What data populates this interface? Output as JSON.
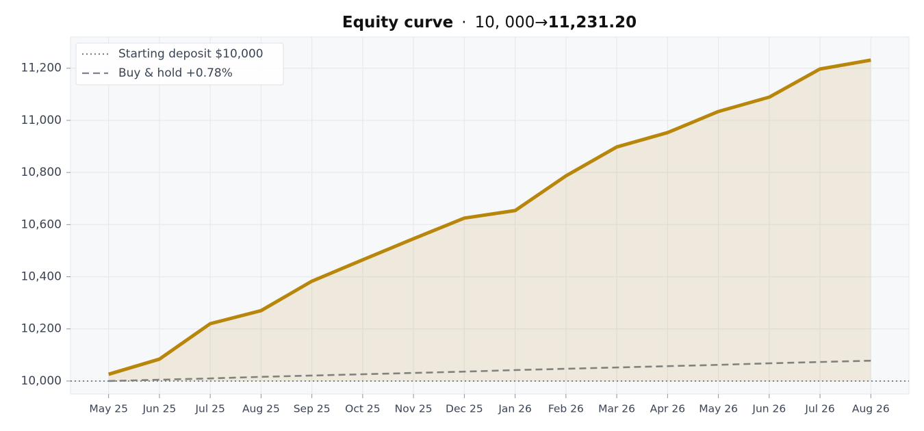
{
  "chart_data": {
    "type": "line",
    "title_parts": [
      "Equity curve",
      "·",
      "10, 000→",
      "11,231.20"
    ],
    "categories": [
      "May 25",
      "Jun 25",
      "Jul 25",
      "Aug 25",
      "Sep 25",
      "Oct 25",
      "Nov 25",
      "Dec 25",
      "Jan 26",
      "Feb 26",
      "Mar 26",
      "Apr 26",
      "May 26",
      "Jun 26",
      "Jul 26",
      "Aug 26"
    ],
    "series": [
      {
        "color": "#b8860b",
        "style": "solid",
        "fill": true,
        "values": [
          10026,
          10084,
          10220,
          10270,
          10383,
          10465,
          10546,
          10625,
          10654,
          10787,
          10898,
          10953,
          11034,
          11089,
          11197,
          11231.2
        ]
      },
      {
        "name": "Buy & hold +0.78%",
        "color": "#7a8290",
        "style": "dashed",
        "fill": false,
        "values": [
          10000,
          10005,
          10010,
          10016,
          10021,
          10026,
          10031,
          10036,
          10042,
          10047,
          10052,
          10057,
          10062,
          10068,
          10073,
          10078
        ]
      }
    ],
    "reference_line": {
      "name": "Starting deposit $10,000",
      "value": 10000,
      "color": "#7a8290",
      "style": "dotted"
    },
    "ylim": [
      9950,
      11320
    ],
    "yticks": [
      {
        "value": 10000,
        "label": "10,000"
      },
      {
        "value": 10200,
        "label": "10,200"
      },
      {
        "value": 10400,
        "label": "10,400"
      },
      {
        "value": 10600,
        "label": "10,600"
      },
      {
        "value": 10800,
        "label": "10,800"
      },
      {
        "value": 11000,
        "label": "11,000"
      },
      {
        "value": 11200,
        "label": "11,200"
      }
    ],
    "grid": true,
    "legend": "upper left"
  }
}
